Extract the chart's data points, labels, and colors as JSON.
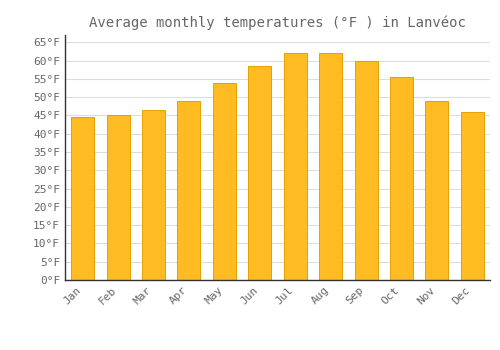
{
  "title": "Average monthly temperatures (°F ) in Lanvéoc",
  "months": [
    "Jan",
    "Feb",
    "Mar",
    "Apr",
    "May",
    "Jun",
    "Jul",
    "Aug",
    "Sep",
    "Oct",
    "Nov",
    "Dec"
  ],
  "values": [
    44.5,
    45.0,
    46.5,
    49.0,
    54.0,
    58.5,
    62.0,
    62.0,
    60.0,
    55.5,
    49.0,
    46.0
  ],
  "bar_color": "#FFBB22",
  "bar_edge_color": "#E8A000",
  "background_color": "#FFFFFF",
  "grid_color": "#DDDDDD",
  "text_color": "#666666",
  "spine_color": "#333333",
  "ylim": [
    0,
    67
  ],
  "ytick_step": 5,
  "title_fontsize": 10,
  "tick_fontsize": 8,
  "font_family": "monospace"
}
